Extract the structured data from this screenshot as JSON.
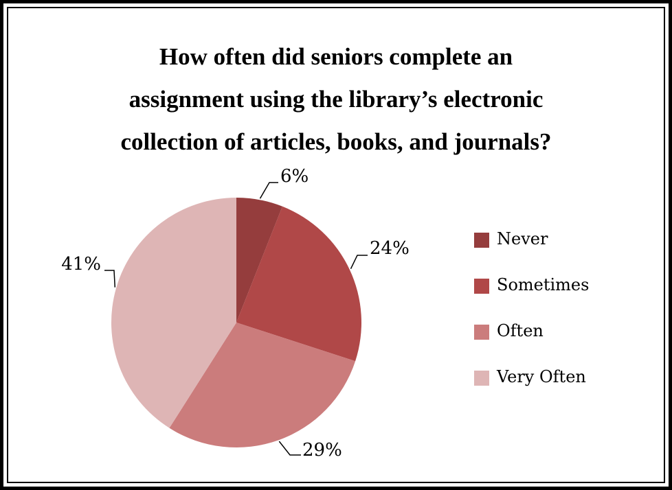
{
  "chart_data": {
    "type": "pie",
    "title_lines": [
      "How often did seniors complete an",
      "assignment using the library’s electronic",
      "collection of articles, books, and journals?"
    ],
    "categories": [
      "Never",
      "Sometimes",
      "Often",
      "Very Often"
    ],
    "values": [
      6,
      24,
      29,
      41
    ],
    "data_labels": [
      "6%",
      "24%",
      "29%",
      "41%"
    ],
    "colors": [
      "#953d3d",
      "#b04848",
      "#cb7c7c",
      "#deb5b5"
    ],
    "legend_position": "right"
  }
}
